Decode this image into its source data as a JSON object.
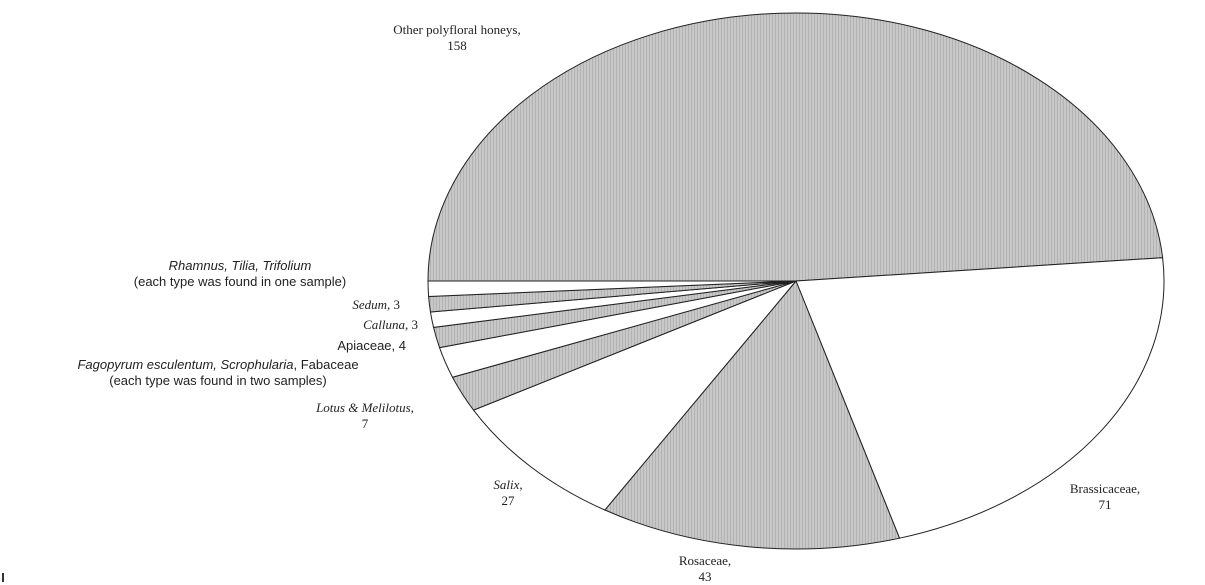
{
  "chart_data": {
    "type": "pie",
    "title": "",
    "colors": {
      "hatched": "#c8c8c8",
      "plain": "#ffffff",
      "edge": "#222222"
    },
    "slices": [
      {
        "category": "Other polyfloral honeys",
        "value": 158,
        "fill": "hatched",
        "label_lines": [
          [
            {
              "t": "Other polyfloral honeys,"
            }
          ],
          [
            {
              "t": "158"
            }
          ]
        ]
      },
      {
        "category": "Brassicaceae",
        "value": 71,
        "fill": "plain",
        "label_lines": [
          [
            {
              "t": "Brassicaceae,"
            }
          ],
          [
            {
              "t": "71"
            }
          ]
        ]
      },
      {
        "category": "Rosaceae",
        "value": 43,
        "fill": "hatched",
        "label_lines": [
          [
            {
              "t": "Rosaceae,"
            }
          ],
          [
            {
              "t": "43"
            }
          ]
        ]
      },
      {
        "category": "Salix",
        "value": 27,
        "fill": "plain",
        "label_lines": [
          [
            {
              "t": "Salix",
              "i": true
            },
            {
              "t": ","
            }
          ],
          [
            {
              "t": "27"
            }
          ]
        ]
      },
      {
        "category": "Lotus & Melilotus",
        "value": 7,
        "fill": "hatched",
        "label_lines": [
          [
            {
              "t": "Lotus & Melilotus,",
              "i": true
            }
          ],
          [
            {
              "t": "7"
            }
          ]
        ]
      },
      {
        "category": "Fagopyrum esculentum, Scrophularia, Fabaceae",
        "value": 6,
        "fill": "plain",
        "label_lines": [
          [
            {
              "t": "Fagopyrum esculentum, Scrophularia",
              "i": true
            },
            {
              "t": ", Fabaceae"
            }
          ],
          [
            {
              "t": "(each type was found in two samples)"
            }
          ]
        ]
      },
      {
        "category": "Apiaceae",
        "value": 4,
        "fill": "hatched",
        "label_lines": [
          [
            {
              "t": "Apiaceae, 4"
            }
          ]
        ]
      },
      {
        "category": "Calluna",
        "value": 3,
        "fill": "plain",
        "label_lines": [
          [
            {
              "t": "Calluna",
              "i": true
            },
            {
              "t": ", 3"
            }
          ]
        ]
      },
      {
        "category": "Sedum",
        "value": 3,
        "fill": "hatched",
        "label_lines": [
          [
            {
              "t": "Sedum",
              "i": true
            },
            {
              "t": ", 3"
            }
          ]
        ]
      },
      {
        "category": "Rhamnus, Tilia, Trifolium",
        "value": 3,
        "fill": "plain",
        "label_lines": [
          [
            {
              "t": "Rhamnus, Tilia, Trifolium",
              "i": true
            }
          ],
          [
            {
              "t": "(each type was found in one sample)"
            }
          ]
        ]
      }
    ]
  }
}
